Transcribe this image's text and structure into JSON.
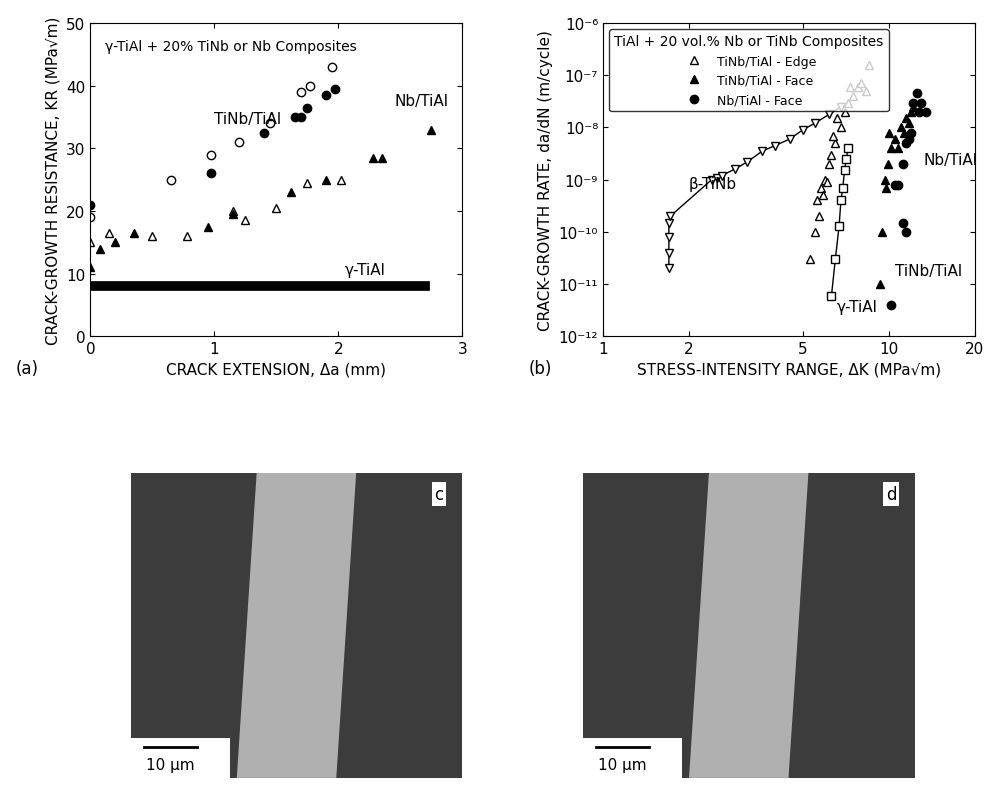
{
  "chart_data": [
    {
      "type": "scatter",
      "title": "γ-TiAl + 20% TiNb or Nb Composites",
      "panel_label": "(a)",
      "x_label": "CRACK EXTENSION, Δa (mm)",
      "y_label": "CRACK-GROWTH RESISTANCE, KR (MPa√m)",
      "xlim": [
        0,
        3
      ],
      "xticks": [
        0,
        1,
        2,
        3
      ],
      "ylim": [
        0,
        50
      ],
      "yticks": [
        0,
        10,
        20,
        30,
        40,
        50
      ],
      "grid": false,
      "series": [
        {
          "color": "#000000",
          "marker": "circle_open",
          "line_style": "none",
          "x": [
            0,
            0.65,
            0.97,
            1.2,
            1.45,
            1.7,
            1.77,
            1.95
          ],
          "values": [
            19,
            25,
            29,
            31,
            34,
            39,
            40,
            43
          ]
        },
        {
          "color": "#000000",
          "marker": "circle_filled",
          "line_style": "none",
          "x": [
            0,
            0.97,
            1.4,
            1.65,
            1.7,
            1.75,
            1.9,
            1.97
          ],
          "values": [
            21,
            26,
            32.5,
            35,
            35,
            36.5,
            38.5,
            39.5
          ]
        },
        {
          "color": "#000000",
          "marker": "triangle_up_open",
          "line_style": "none",
          "x": [
            0,
            0.15,
            0.5,
            0.78,
            1.15,
            1.25,
            1.5,
            1.75,
            2.02
          ],
          "values": [
            15,
            16.5,
            16,
            16,
            20,
            18.5,
            20.5,
            24.5,
            25
          ]
        },
        {
          "color": "#000000",
          "marker": "triangle_up_filled",
          "line_style": "none",
          "x": [
            0,
            0.08,
            0.2,
            0.35,
            0.95,
            1.15,
            1.62,
            1.9,
            2.28,
            2.35,
            2.75
          ],
          "values": [
            11,
            14,
            15,
            16.5,
            17.5,
            19.5,
            23,
            25,
            28.5,
            28.5,
            33
          ]
        },
        {
          "color": "#000000",
          "marker": "none",
          "line_style": "solid",
          "x": [
            0,
            2.7
          ],
          "values": [
            8,
            8
          ]
        }
      ],
      "annotations": [
        {
          "text": "TiNb/TiAl",
          "x": 1.0,
          "y": 34
        },
        {
          "text": "Nb/TiAl",
          "x": 2.45,
          "y": 37
        },
        {
          "text": "γ-TiAl",
          "x": 2.05,
          "y": 10
        }
      ]
    },
    {
      "type": "scatter",
      "title": "TiAl + 20 vol.% Nb or TiNb Composites",
      "panel_label": "(b)",
      "x_label": "STRESS-INTENSITY RANGE, ΔK (MPa√m)",
      "y_label": "CRACK-GROWTH RATE, da/dN (m/cycle)",
      "log": true,
      "legend": "upper left",
      "xlim": [
        1,
        20
      ],
      "xticks": [
        1,
        2,
        5,
        10,
        20
      ],
      "ylim": [
        1e-12,
        1e-06
      ],
      "yticks": [
        {
          "value": 1e-12,
          "label": "10⁻¹²"
        },
        {
          "value": 1e-11,
          "label": "10⁻¹¹"
        },
        {
          "value": 1e-10,
          "label": "10⁻¹⁰"
        },
        {
          "value": 1e-09,
          "label": "10⁻⁹"
        },
        {
          "value": 1e-08,
          "label": "10⁻⁸"
        },
        {
          "value": 1e-07,
          "label": "10⁻⁷"
        },
        {
          "value": 1e-06,
          "label": "10⁻⁶"
        }
      ],
      "grid": false,
      "series": [
        {
          "name": "TiNb/TiAl - Edge",
          "color": "#000000",
          "marker": "triangle_up_open",
          "line_style": "none",
          "x": [
            5.3,
            5.5,
            5.7,
            5.6,
            5.8,
            6.0,
            6.1,
            5.9,
            6.2,
            6.3,
            6.5,
            6.4,
            6.8,
            6.6,
            7.0,
            7.2,
            7.5,
            7.8,
            8.0,
            8.3,
            8.5,
            7.3
          ],
          "values": [
            3e-11,
            1e-10,
            2e-10,
            4e-10,
            7e-10,
            1e-09,
            9e-10,
            5e-10,
            2e-09,
            3e-09,
            5e-09,
            7e-09,
            1e-08,
            1.5e-08,
            2e-08,
            3e-08,
            4e-08,
            6e-08,
            7e-08,
            5e-08,
            1.6e-07,
            6e-08
          ]
        },
        {
          "name": "TiNb/TiAl - Face",
          "color": "#000000",
          "marker": "triangle_up_filled",
          "line_style": "none",
          "x": [
            9.3,
            9.5,
            9.7,
            9.9,
            10.2,
            10.5,
            10.8,
            11.0,
            11.3,
            11.5,
            11.8,
            12.0,
            12.2,
            10.0,
            9.8
          ],
          "values": [
            1e-11,
            1e-10,
            1e-09,
            2e-09,
            4e-09,
            6e-09,
            4e-09,
            1e-08,
            8e-09,
            1.5e-08,
            1.2e-08,
            2e-08,
            2.5e-08,
            8e-09,
            7e-10
          ]
        },
        {
          "name": "Nb/TiAl - Face",
          "color": "#000000",
          "marker": "circle_filled",
          "line_style": "none",
          "x": [
            10.2,
            10.5,
            10.8,
            11.2,
            11.5,
            11.2,
            11.5,
            12.0,
            12.2,
            12.5,
            13.0,
            13.5,
            11.8,
            12.8
          ],
          "values": [
            4e-12,
            8e-10,
            8e-10,
            1.5e-10,
            1e-10,
            2e-09,
            5e-09,
            8e-09,
            3e-08,
            4.5e-08,
            3e-08,
            2e-08,
            6e-09,
            2e-08
          ]
        },
        {
          "color": "#000000",
          "marker": "triangle_down_open",
          "line_style": "solid",
          "x": [
            1.7,
            1.7,
            1.7,
            1.7,
            1.72,
            2.4,
            2.5,
            2.6,
            2.9,
            3.2,
            3.6,
            4.0,
            4.5,
            5.0,
            5.5,
            6.2,
            6.8
          ],
          "values": [
            2e-11,
            4e-11,
            8e-11,
            1.5e-10,
            2e-10,
            1e-09,
            1.1e-09,
            1.2e-09,
            1.6e-09,
            2.2e-09,
            3.5e-09,
            4.5e-09,
            6e-09,
            9e-09,
            1.2e-08,
            1.8e-08,
            2.5e-08
          ]
        },
        {
          "color": "#000000",
          "marker": "square_open",
          "line_style": "solid",
          "x": [
            6.3,
            6.5,
            6.7,
            6.8,
            6.9,
            7.0,
            7.1,
            7.2
          ],
          "values": [
            6e-12,
            3e-11,
            1.3e-10,
            4e-10,
            7e-10,
            1.5e-09,
            2.5e-09,
            4e-09
          ]
        }
      ],
      "annotations": [
        {
          "text": "β-TiNb",
          "x": 2.0,
          "y": 7e-10
        },
        {
          "text": "γ-TiAl",
          "x": 6.6,
          "y": 3e-12
        },
        {
          "text": "TiNb/TiAl",
          "x": 10.5,
          "y": 1.5e-11
        },
        {
          "text": "Nb/TiAl",
          "x": 13.2,
          "y": 2e-09
        }
      ]
    }
  ],
  "micrographs": [
    {
      "label": "c",
      "scale_bar": "10 μm"
    },
    {
      "label": "d",
      "scale_bar": "10 μm"
    }
  ]
}
